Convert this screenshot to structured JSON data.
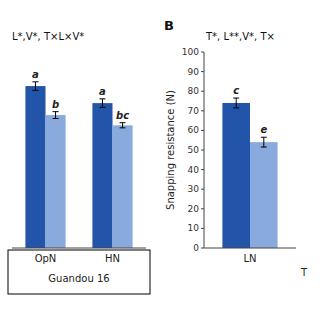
{
  "chart_data": [
    {
      "type": "bar",
      "title": "L*,V*, T×L×V*",
      "xlabel": "Guandou 16",
      "categories": [
        "OpN",
        "HN"
      ],
      "series": [
        {
          "color": "#2255aa",
          "values": [
            95,
            85
          ],
          "errors": [
            2.5,
            2.5
          ],
          "annotations": [
            "a",
            "a"
          ]
        },
        {
          "color": "#88aadd",
          "values": [
            78,
            72
          ],
          "errors": [
            2.0,
            1.5
          ],
          "annotations": [
            "b",
            "bc"
          ]
        }
      ],
      "ylim": [
        0,
        115
      ],
      "tick_labels": "x"
    },
    {
      "type": "bar",
      "panel_label": "B",
      "title": "T*, L**,V*, T×",
      "xlabel": "T",
      "ylabel": "Snapping resistance (N)",
      "categories": [
        "LN"
      ],
      "series": [
        {
          "color": "#2255aa",
          "values": [
            74
          ],
          "errors": [
            2.5
          ],
          "annotations": [
            "c"
          ]
        },
        {
          "color": "#88aadd",
          "values": [
            54
          ],
          "errors": [
            2.5
          ],
          "annotations": [
            "e"
          ]
        }
      ],
      "ylim": [
        0,
        100
      ],
      "yticks": [
        0,
        10,
        20,
        30,
        40,
        50,
        60,
        70,
        80,
        90,
        100
      ]
    }
  ]
}
